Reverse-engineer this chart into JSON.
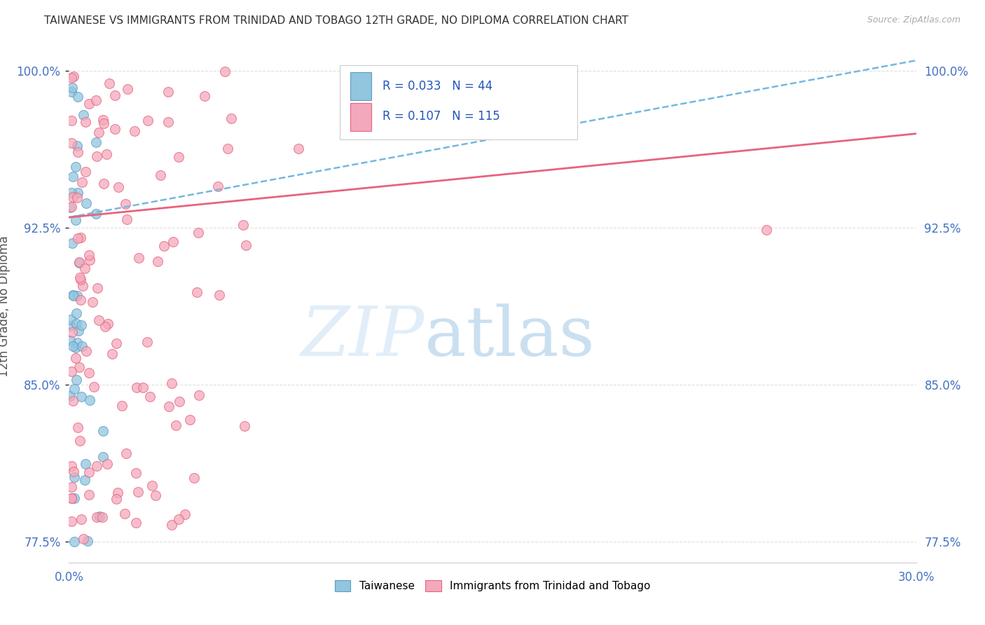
{
  "title": "TAIWANESE VS IMMIGRANTS FROM TRINIDAD AND TOBAGO 12TH GRADE, NO DIPLOMA CORRELATION CHART",
  "source": "Source: ZipAtlas.com",
  "ylabel_label": "12th Grade, No Diploma",
  "legend_labels": [
    "Taiwanese",
    "Immigrants from Trinidad and Tobago"
  ],
  "legend_r_n": [
    {
      "R": "0.033",
      "N": "44",
      "color": "#92c5de"
    },
    {
      "R": "0.107",
      "N": "115",
      "color": "#f4a8bb"
    }
  ],
  "xlim": [
    0.0,
    0.3
  ],
  "ylim": [
    0.765,
    1.01
  ],
  "ytick_vals": [
    1.0,
    0.925,
    0.85,
    0.775
  ],
  "ytick_labels": [
    "100.0%",
    "92.5%",
    "85.0%",
    "77.5%"
  ],
  "xtick_vals": [
    0.0,
    0.05,
    0.1,
    0.15,
    0.2,
    0.25,
    0.3
  ],
  "xtick_labels": [
    "0.0%",
    "",
    "",
    "",
    "",
    "",
    "30.0%"
  ],
  "bg_color": "#ffffff",
  "grid_color": "#e0e0e0",
  "taiwanese_fill": "#92c5de",
  "taiwanese_edge": "#5b9dc9",
  "tt_fill": "#f4a8bb",
  "tt_edge": "#e8637e",
  "trend_tw_color": "#74b8e0",
  "trend_tt_color": "#e8637e"
}
